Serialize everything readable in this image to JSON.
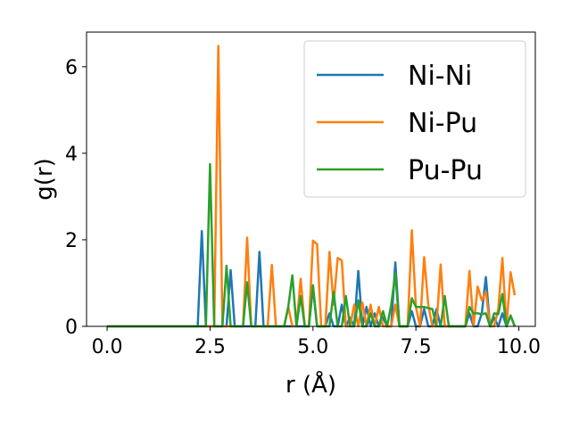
{
  "chart_data": {
    "type": "line",
    "title": "",
    "xlabel": "r (Å)",
    "ylabel": "g(r)",
    "xlim": [
      -0.5,
      10.4
    ],
    "ylim": [
      0,
      6.8
    ],
    "xticks": [
      0.0,
      2.5,
      5.0,
      7.5,
      10.0
    ],
    "xtick_labels": [
      "0.0",
      "2.5",
      "5.0",
      "7.5",
      "10.0"
    ],
    "yticks": [
      0,
      2,
      4,
      6
    ],
    "ytick_labels": [
      "0",
      "2",
      "4",
      "6"
    ],
    "grid": false,
    "legend_position": "upper-right",
    "series": [
      {
        "name": "Ni-Ni",
        "color": "#1f77b4",
        "x": [
          0.0,
          2.2,
          2.3,
          2.4,
          2.9,
          3.0,
          3.1,
          3.6,
          3.7,
          3.8,
          4.9,
          5.0,
          5.1,
          5.3,
          5.4,
          5.5,
          5.6,
          5.7,
          5.8,
          5.9,
          6.0,
          6.1,
          6.2,
          6.3,
          6.4,
          6.5,
          6.6,
          6.7,
          6.8,
          6.9,
          7.0,
          7.1,
          7.2,
          7.3,
          7.4,
          7.5,
          7.6,
          7.7,
          7.8,
          7.9,
          8.0,
          8.1,
          8.2,
          8.3,
          8.4,
          8.5,
          8.6,
          8.7,
          8.8,
          8.9,
          9.0,
          9.1,
          9.2,
          9.3,
          9.4,
          9.5,
          9.6,
          9.7,
          9.8,
          9.9
        ],
        "y": [
          0,
          0,
          2.2,
          0,
          0,
          1.3,
          0,
          0,
          1.72,
          0,
          0,
          0.9,
          0,
          0,
          0.3,
          0,
          0,
          0.5,
          0,
          0.2,
          0,
          1.28,
          0,
          0.45,
          0,
          0.3,
          0,
          0.2,
          0,
          0,
          1.48,
          0,
          0,
          0,
          0.35,
          0,
          0,
          0.4,
          0,
          0,
          0.4,
          0,
          0,
          0,
          0,
          0,
          0,
          0,
          0.3,
          0,
          0,
          0.3,
          1.14,
          0,
          0.2,
          0,
          0.3,
          0,
          0.25,
          0
        ]
      },
      {
        "name": "Ni-Pu",
        "color": "#ff7f0e",
        "x": [
          0.0,
          2.5,
          2.6,
          2.7,
          2.8,
          3.2,
          3.3,
          3.4,
          3.5,
          3.9,
          4.0,
          4.1,
          4.3,
          4.4,
          4.5,
          4.6,
          4.7,
          4.8,
          4.9,
          5.0,
          5.1,
          5.2,
          5.3,
          5.4,
          5.5,
          5.6,
          5.7,
          5.8,
          5.9,
          6.0,
          6.1,
          6.2,
          6.3,
          6.4,
          6.5,
          6.6,
          6.7,
          6.8,
          6.9,
          7.0,
          7.1,
          7.2,
          7.3,
          7.4,
          7.5,
          7.6,
          7.7,
          7.8,
          7.9,
          8.0,
          8.1,
          8.2,
          8.3,
          8.4,
          8.5,
          8.6,
          8.7,
          8.8,
          8.9,
          9.0,
          9.1,
          9.2,
          9.3,
          9.4,
          9.5,
          9.6,
          9.7,
          9.8,
          9.9
        ],
        "y": [
          0,
          0,
          0,
          6.48,
          0,
          0,
          0,
          2.05,
          0,
          0,
          1.42,
          0,
          0,
          0.45,
          0,
          0,
          1.1,
          0,
          0,
          1.98,
          1.9,
          0,
          0,
          1.72,
          0.5,
          1.58,
          1.52,
          0,
          0,
          0.5,
          0,
          0.55,
          0,
          0.5,
          0,
          0.45,
          0,
          0,
          0,
          0.5,
          0,
          0,
          0,
          2.22,
          0.45,
          0,
          1.6,
          0.5,
          0,
          0,
          1.43,
          0,
          0,
          0,
          0,
          0,
          0,
          1.28,
          0,
          0.92,
          0.6,
          0.8,
          0,
          0,
          0.4,
          1.58,
          0,
          1.25,
          0.72
        ]
      },
      {
        "name": "Pu-Pu",
        "color": "#2ca02c",
        "x": [
          0.0,
          2.4,
          2.5,
          2.6,
          2.8,
          2.9,
          3.0,
          3.3,
          3.4,
          3.5,
          4.3,
          4.4,
          4.5,
          4.6,
          4.7,
          4.8,
          4.9,
          5.0,
          5.1,
          5.3,
          5.4,
          5.5,
          5.6,
          5.7,
          5.8,
          5.9,
          6.0,
          6.1,
          6.2,
          6.3,
          6.4,
          6.5,
          6.6,
          6.7,
          6.8,
          6.9,
          7.0,
          7.1,
          7.2,
          7.3,
          7.4,
          7.5,
          7.6,
          7.7,
          7.8,
          7.9,
          8.0,
          8.1,
          8.2,
          8.3,
          8.4,
          8.5,
          8.6,
          8.7,
          8.8,
          8.9,
          9.0,
          9.1,
          9.2,
          9.3,
          9.4,
          9.5,
          9.6,
          9.7,
          9.8,
          9.9
        ],
        "y": [
          0,
          0,
          3.75,
          0,
          0,
          1.4,
          0,
          0,
          1.02,
          0,
          0,
          0.45,
          1.18,
          0,
          0.7,
          0,
          0,
          0.95,
          0,
          0,
          0,
          0.8,
          0,
          0,
          0.7,
          0,
          0,
          0.6,
          0,
          0,
          0.3,
          0,
          0,
          0.35,
          0,
          0.5,
          1.22,
          0,
          0,
          0,
          0.65,
          0.45,
          0.45,
          0.45,
          0.42,
          0.4,
          0,
          0,
          0.7,
          0,
          0,
          0,
          0,
          0,
          0.45,
          0.3,
          0.3,
          0.28,
          0.3,
          0,
          0.3,
          0.28,
          0.75,
          0,
          0.25,
          0
        ]
      }
    ]
  }
}
